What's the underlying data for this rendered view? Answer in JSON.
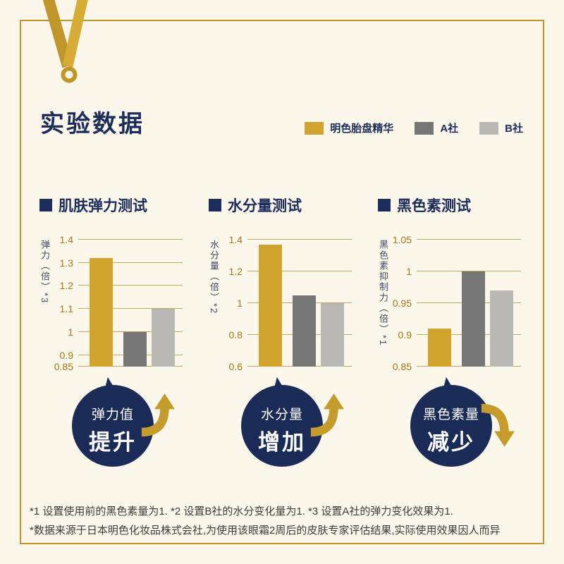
{
  "page": {
    "title": "实验数据",
    "colors": {
      "background": "#fbf7ea",
      "frame_gold": "#bf962b",
      "navy": "#1c2d5c",
      "accent_gold": "#d2a32c"
    }
  },
  "legend": {
    "items": [
      {
        "label": "明色胎盘精华",
        "color": "#d2a32c"
      },
      {
        "label": "A社",
        "color": "#767676"
      },
      {
        "label": "B社",
        "color": "#bab8b4"
      }
    ]
  },
  "chart_data": [
    {
      "type": "bar",
      "title": "肌肤弹力测试",
      "ylabel": "弹力（倍）*3",
      "ylim": [
        0.85,
        1.4
      ],
      "ticks": [
        0.85,
        0.9,
        1,
        1.1,
        1.2,
        1.3,
        1.4
      ],
      "tick_labels": [
        "0.85",
        "0.9",
        "1",
        "1.1",
        "1.2",
        "1.3",
        "1.4"
      ],
      "grid": true,
      "legend_position": "top-right",
      "categories": [
        "明色胎盘精华",
        "A社",
        "B社"
      ],
      "series": [
        {
          "name": "明色胎盘精华",
          "value": 1.32,
          "color": "#d2a32c"
        },
        {
          "name": "A社",
          "value": 1.0,
          "color": "#767676"
        },
        {
          "name": "B社",
          "value": 1.1,
          "color": "#bab8b4"
        }
      ]
    },
    {
      "type": "bar",
      "title": "水分量测试",
      "ylabel": "水分量（倍）*2",
      "ylim": [
        0.6,
        1.4
      ],
      "ticks": [
        0.6,
        0.8,
        1,
        1.2,
        1.4
      ],
      "tick_labels": [
        "0.6",
        "0.8",
        "1",
        "1.2",
        "1.4"
      ],
      "grid": true,
      "categories": [
        "明色胎盘精华",
        "A社",
        "B社"
      ],
      "series": [
        {
          "name": "明色胎盘精华",
          "value": 1.37,
          "color": "#d2a32c"
        },
        {
          "name": "A社",
          "value": 1.05,
          "color": "#767676"
        },
        {
          "name": "B社",
          "value": 1.0,
          "color": "#bab8b4"
        }
      ]
    },
    {
      "type": "bar",
      "title": "黑色素测试",
      "ylabel": "黑色素抑制力（倍）*1",
      "ylim": [
        0.85,
        1.05
      ],
      "ticks": [
        0.85,
        0.9,
        0.95,
        1,
        1.05
      ],
      "tick_labels": [
        "0.85",
        "0.9",
        "0.95",
        "1",
        "1.05"
      ],
      "grid": true,
      "categories": [
        "明色胎盘精华",
        "A社",
        "B社"
      ],
      "series": [
        {
          "name": "明色胎盘精华",
          "value": 0.91,
          "color": "#d2a32c"
        },
        {
          "name": "A社",
          "value": 1.0,
          "color": "#767676"
        },
        {
          "name": "B社",
          "value": 0.97,
          "color": "#bab8b4"
        }
      ]
    }
  ],
  "badges": [
    {
      "line1": "弹力值",
      "line2": "提升",
      "direction": "up"
    },
    {
      "line1": "水分量",
      "line2": "增加",
      "direction": "up"
    },
    {
      "line1": "黑色素量",
      "line2": "减少",
      "direction": "down"
    }
  ],
  "footnotes": {
    "line1": "*1 设置使用前的黑色素量为1.  *2 设置B社的水分变化量为1.  *3 设置A社的弹力变化效果为1.",
    "line2": "*数据来源于日本明色化妆品株式会社,为使用该眼霜2周后的皮肤专家评估结果,实际使用效果因人而异"
  }
}
